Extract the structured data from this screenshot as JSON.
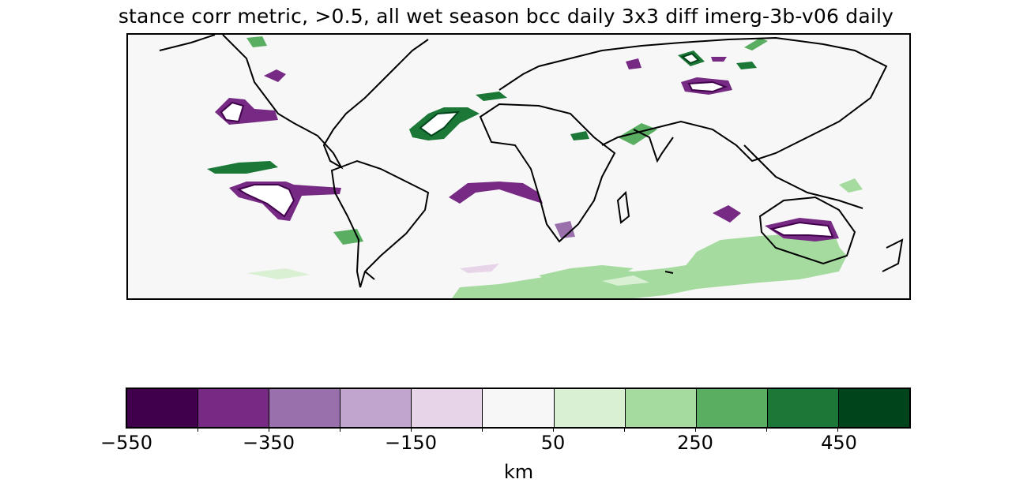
{
  "title": "stance corr metric, >0.5, all wet season bcc daily 3x3 diff imerg-3b-v06 daily",
  "colorbar": {
    "label": "km",
    "ticks": [
      "−550",
      "−350",
      "−150",
      "50",
      "250",
      "450"
    ],
    "colors": [
      "#40004b",
      "#762a83",
      "#9970ab",
      "#c2a5cf",
      "#e7d4e8",
      "#f7f7f7",
      "#d9f0d3",
      "#a6dba0",
      "#5aae61",
      "#1b7837",
      "#00441b"
    ]
  },
  "map": {
    "background": "#f7f7f7",
    "coastline_color": "#000000"
  }
}
